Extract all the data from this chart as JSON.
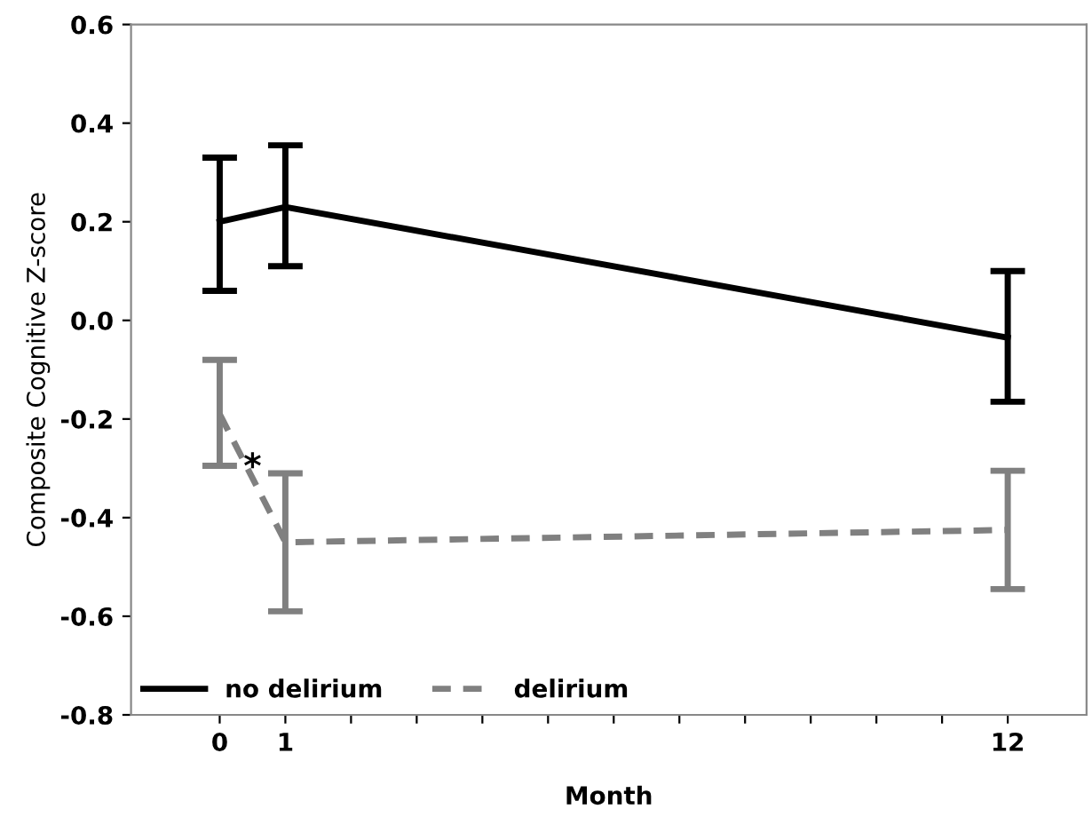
{
  "chart_data": {
    "type": "line",
    "xlabel": "Month",
    "ylabel": "Composite Cognitive Z-score",
    "x": [
      0,
      1,
      12
    ],
    "series": [
      {
        "name": "no delirium",
        "color": "#000000",
        "values": [
          0.2,
          0.23,
          -0.035
        ],
        "errors": [
          [
            0.06,
            0.33
          ],
          [
            0.11,
            0.355
          ],
          [
            -0.165,
            0.1
          ]
        ],
        "line_style": "solid"
      },
      {
        "name": "delirium",
        "color": "#808080",
        "values": [
          -0.19,
          -0.45,
          -0.425
        ],
        "errors": [
          [
            -0.295,
            -0.08
          ],
          [
            -0.59,
            -0.31
          ],
          [
            -0.545,
            -0.305
          ]
        ],
        "line_style": "dashed"
      }
    ],
    "annotations": [
      {
        "text": "*",
        "x": 0.5,
        "y": -0.3
      }
    ],
    "xlim": [
      -1.35,
      13.2
    ],
    "xticks": [
      0,
      1,
      {
        "value": 2,
        "label": null
      },
      {
        "value": 3,
        "label": null
      },
      {
        "value": 4,
        "label": null
      },
      {
        "value": 5,
        "label": null
      },
      {
        "value": 6,
        "label": null
      },
      {
        "value": 7,
        "label": null
      },
      {
        "value": 8,
        "label": null
      },
      {
        "value": 9,
        "label": null
      },
      {
        "value": 10,
        "label": null
      },
      {
        "value": 11,
        "label": null
      },
      12
    ],
    "ylim": [
      -0.8,
      0.6
    ],
    "yticks": [
      {
        "value": -0.8,
        "label": "-0.8"
      },
      {
        "value": -0.6,
        "label": "-0.6"
      },
      {
        "value": -0.4,
        "label": "-0.4"
      },
      {
        "value": -0.2,
        "label": "-0.2"
      },
      {
        "value": 0,
        "label": "0.0"
      },
      {
        "value": 0.2,
        "label": "0.2"
      },
      {
        "value": 0.4,
        "label": "0.4"
      },
      {
        "value": 0.6,
        "label": "0.6"
      }
    ],
    "grid": false,
    "legend": "bottom left",
    "marker": "none"
  }
}
